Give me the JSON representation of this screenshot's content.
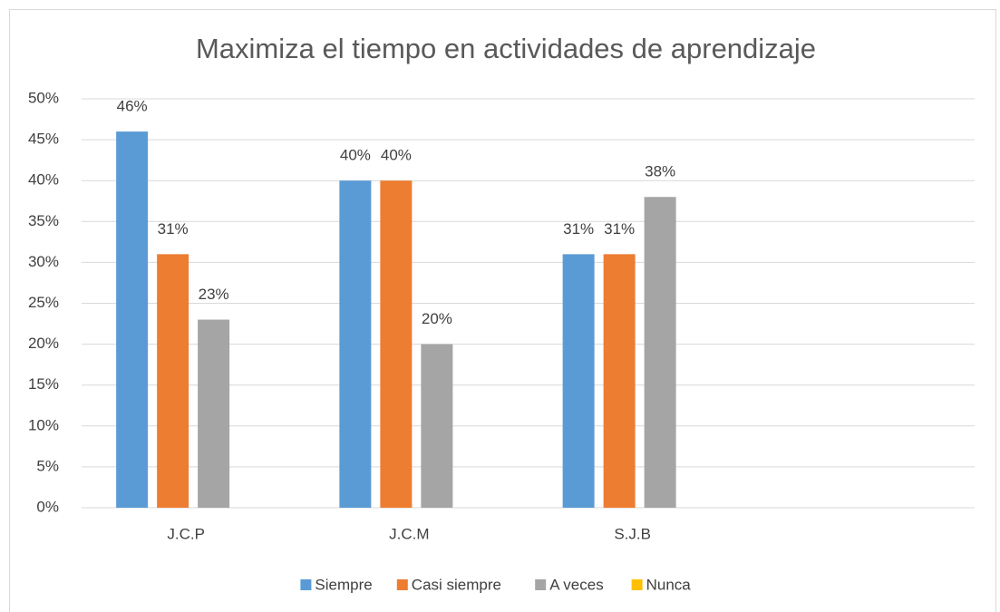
{
  "chart_data": {
    "type": "bar",
    "title": "Maximiza el tiempo en actividades de aprendizaje",
    "categories": [
      "J.C.P",
      "J.C.M",
      "S.J.B",
      null
    ],
    "series": [
      {
        "name": "Siempre",
        "color": "#5b9bd5",
        "values": [
          46,
          40,
          31,
          null
        ],
        "value_labels": [
          "46%",
          "40%",
          "31%",
          null
        ]
      },
      {
        "name": "Casi siempre",
        "color": "#ed7d31",
        "values": [
          31,
          40,
          31,
          null
        ],
        "value_labels": [
          "31%",
          "40%",
          "31%",
          null
        ]
      },
      {
        "name": "A veces",
        "color": "#a5a5a5",
        "values": [
          23,
          20,
          38,
          null
        ],
        "value_labels": [
          "23%",
          "20%",
          "38%",
          null
        ]
      },
      {
        "name": "Nunca",
        "color": "#ffc000",
        "values": [
          null,
          null,
          null,
          null
        ],
        "value_labels": [
          null,
          null,
          null,
          null
        ]
      }
    ],
    "ylim": [
      0,
      50
    ],
    "yticks": [
      {
        "value": 0,
        "label": "0%"
      },
      {
        "value": 5,
        "label": "5%"
      },
      {
        "value": 10,
        "label": "10%"
      },
      {
        "value": 15,
        "label": "15%"
      },
      {
        "value": 20,
        "label": "20%"
      },
      {
        "value": 25,
        "label": "25%"
      },
      {
        "value": 30,
        "label": "30%"
      },
      {
        "value": 35,
        "label": "35%"
      },
      {
        "value": 40,
        "label": "40%"
      },
      {
        "value": 45,
        "label": "45%"
      },
      {
        "value": 50,
        "label": "50%"
      }
    ],
    "grid": true,
    "legend": "bottom"
  }
}
